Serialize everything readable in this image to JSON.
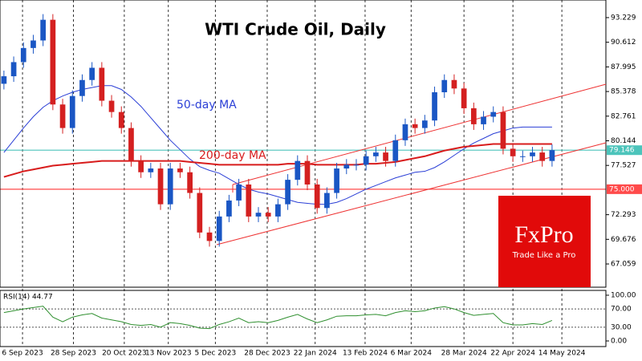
{
  "chart_data": {
    "type": "candlestick",
    "title": "WTI Crude Oil, Daily",
    "up_color": "#1a56c4",
    "down_color": "#d42020",
    "open": [
      86.2,
      87.0,
      88.5,
      90.0,
      90.8,
      93.0,
      84.0,
      81.5,
      84.9,
      86.6,
      87.9,
      84.4,
      83.2,
      81.5,
      78.0,
      76.8,
      77.2,
      73.4,
      77.2,
      76.8,
      74.6,
      70.4,
      69.5,
      72.1,
      73.8,
      75.5,
      72.1,
      72.5,
      72.1,
      73.4,
      76.0,
      78.0,
      75.5,
      73.0,
      74.6,
      77.2,
      77.6,
      77.6,
      78.5,
      78.9,
      78.0,
      80.2,
      81.9,
      81.5,
      82.3,
      85.3,
      86.6,
      85.7,
      83.6,
      81.9,
      82.7,
      83.2,
      79.3,
      78.5,
      78.5,
      78.9,
      78.0
    ],
    "high": [
      87.6,
      89.1,
      90.6,
      91.4,
      93.6,
      93.6,
      84.6,
      85.5,
      87.2,
      88.5,
      88.5,
      85.0,
      83.8,
      82.1,
      78.6,
      77.8,
      77.8,
      77.8,
      77.8,
      77.4,
      75.2,
      71.0,
      72.7,
      74.4,
      76.1,
      76.1,
      73.1,
      73.1,
      74.0,
      76.6,
      78.6,
      78.6,
      76.1,
      75.2,
      77.8,
      78.2,
      78.2,
      79.1,
      79.5,
      79.5,
      80.8,
      82.5,
      82.5,
      82.9,
      85.9,
      87.2,
      87.2,
      86.3,
      84.2,
      83.3,
      83.8,
      83.8,
      79.9,
      79.1,
      79.5,
      79.5,
      79.75
    ],
    "low": [
      85.6,
      86.4,
      87.9,
      89.4,
      90.2,
      83.4,
      80.9,
      80.9,
      84.3,
      86.0,
      83.8,
      82.6,
      80.9,
      77.4,
      76.2,
      76.2,
      72.8,
      72.8,
      76.2,
      74.0,
      69.8,
      68.9,
      68.9,
      71.5,
      73.2,
      71.5,
      71.5,
      71.5,
      71.5,
      72.8,
      75.4,
      74.9,
      72.4,
      72.4,
      74.0,
      76.6,
      77.0,
      77.0,
      77.9,
      77.4,
      77.4,
      79.6,
      80.9,
      80.9,
      81.7,
      84.7,
      85.1,
      83.0,
      81.3,
      81.3,
      82.1,
      78.7,
      77.9,
      77.9,
      77.9,
      77.4,
      77.4
    ],
    "close": [
      87.0,
      88.5,
      90.0,
      90.8,
      93.0,
      84.0,
      81.5,
      84.9,
      86.6,
      87.9,
      84.4,
      83.2,
      81.5,
      78.0,
      76.8,
      77.2,
      73.4,
      77.2,
      76.8,
      74.6,
      70.4,
      69.5,
      72.1,
      73.8,
      75.5,
      72.1,
      72.5,
      72.1,
      73.4,
      76.0,
      78.0,
      75.5,
      73.0,
      74.6,
      77.2,
      77.6,
      77.6,
      78.5,
      78.9,
      78.0,
      80.2,
      81.9,
      81.5,
      82.3,
      85.3,
      86.6,
      85.7,
      83.6,
      81.9,
      82.7,
      83.2,
      79.3,
      78.5,
      78.5,
      78.9,
      78.0,
      79.15
    ],
    "series": [
      {
        "name": "50-day MA",
        "color": "#2b3fd6",
        "values": [
          78.9,
          80.2,
          81.5,
          82.7,
          83.7,
          84.4,
          84.9,
          85.3,
          85.6,
          85.8,
          86.0,
          86.0,
          85.6,
          84.8,
          83.8,
          82.6,
          81.4,
          80.2,
          79.2,
          78.2,
          77.4,
          77.0,
          76.7,
          76.1,
          75.5,
          75.0,
          74.7,
          74.5,
          74.2,
          73.9,
          73.6,
          73.5,
          73.4,
          73.4,
          73.6,
          74.0,
          74.5,
          75.0,
          75.4,
          75.8,
          76.2,
          76.5,
          76.8,
          76.9,
          77.3,
          77.9,
          78.6,
          79.3,
          79.9,
          80.4,
          80.9,
          81.2,
          81.5,
          81.6,
          81.6,
          81.6,
          81.6
        ]
      },
      {
        "name": "200-day MA",
        "color": "#d81c1c",
        "values": [
          76.3,
          76.6,
          76.9,
          77.1,
          77.3,
          77.5,
          77.6,
          77.7,
          77.8,
          77.9,
          78.0,
          78.0,
          78.0,
          78.0,
          78.0,
          78.0,
          78.0,
          78.0,
          78.0,
          77.9,
          77.8,
          77.7,
          77.6,
          77.6,
          77.6,
          77.6,
          77.6,
          77.6,
          77.6,
          77.7,
          77.7,
          77.7,
          77.6,
          77.6,
          77.6,
          77.6,
          77.6,
          77.7,
          77.7,
          77.8,
          77.9,
          78.1,
          78.3,
          78.5,
          78.8,
          79.1,
          79.3,
          79.5,
          79.6,
          79.7,
          79.8,
          79.8,
          79.8,
          79.8,
          79.8,
          79.8,
          79.8
        ]
      }
    ],
    "levels": [
      {
        "value": 79.146,
        "color": "#4cc4bb"
      },
      {
        "value": 75,
        "label": "75.000",
        "color": "#ff4a4a"
      }
    ],
    "ylim": [
      64.59,
      95.1
    ],
    "yticks": [
      93.229,
      90.612,
      87.995,
      85.378,
      82.761,
      {
        "value": 80.144,
        "label": "80.144"
      },
      77.527,
      72.293,
      69.676,
      67.059
    ],
    "xlim": [
      -0.4,
      61.5
    ],
    "xticks": [
      {
        "value": 1.9,
        "label": "6 Sep 2023"
      },
      {
        "value": 7.1,
        "label": "28 Sep 2023"
      },
      {
        "value": 12.3,
        "label": "20 Oct 2023"
      },
      {
        "value": 16.8,
        "label": "13 Nov 2023"
      },
      {
        "value": 21.6,
        "label": "5 Dec 2023"
      },
      {
        "value": 26.9,
        "label": "28 Dec 2023"
      },
      {
        "value": 31.8,
        "label": "22 Jan 2024"
      },
      {
        "value": 36.9,
        "label": "13 Feb 2024"
      },
      {
        "value": 41.6,
        "label": "6 Mar 2024"
      },
      {
        "value": 47,
        "label": "28 Mar 2024"
      },
      {
        "value": 52,
        "label": "22 Apr 2024"
      },
      {
        "value": 57,
        "label": "14 May 2024"
      }
    ],
    "rsi": {
      "title": "RSI(14) 44.77",
      "color": "#2f8f2f",
      "values": [
        62,
        66,
        70,
        73,
        76,
        52,
        42,
        52,
        57,
        60,
        50,
        46,
        42,
        36,
        34,
        36,
        30,
        40,
        38,
        34,
        28,
        27,
        36,
        42,
        50,
        40,
        42,
        40,
        45,
        52,
        58,
        48,
        40,
        46,
        54,
        55,
        55,
        57,
        58,
        55,
        62,
        66,
        64,
        66,
        72,
        75,
        70,
        62,
        56,
        58,
        60,
        40,
        35,
        35,
        38,
        36,
        44.77
      ],
      "ylim": [
        -12.3,
        110.5
      ],
      "yticks": [
        {
          "value": 100,
          "label": "100.00"
        },
        {
          "value": 70,
          "label": "70.00"
        },
        {
          "value": 30,
          "label": "30.00"
        },
        {
          "value": 0,
          "label": "0.00"
        }
      ]
    }
  },
  "branding": {
    "logo": "FxPro",
    "tagline": "Trade Like a Pro"
  }
}
